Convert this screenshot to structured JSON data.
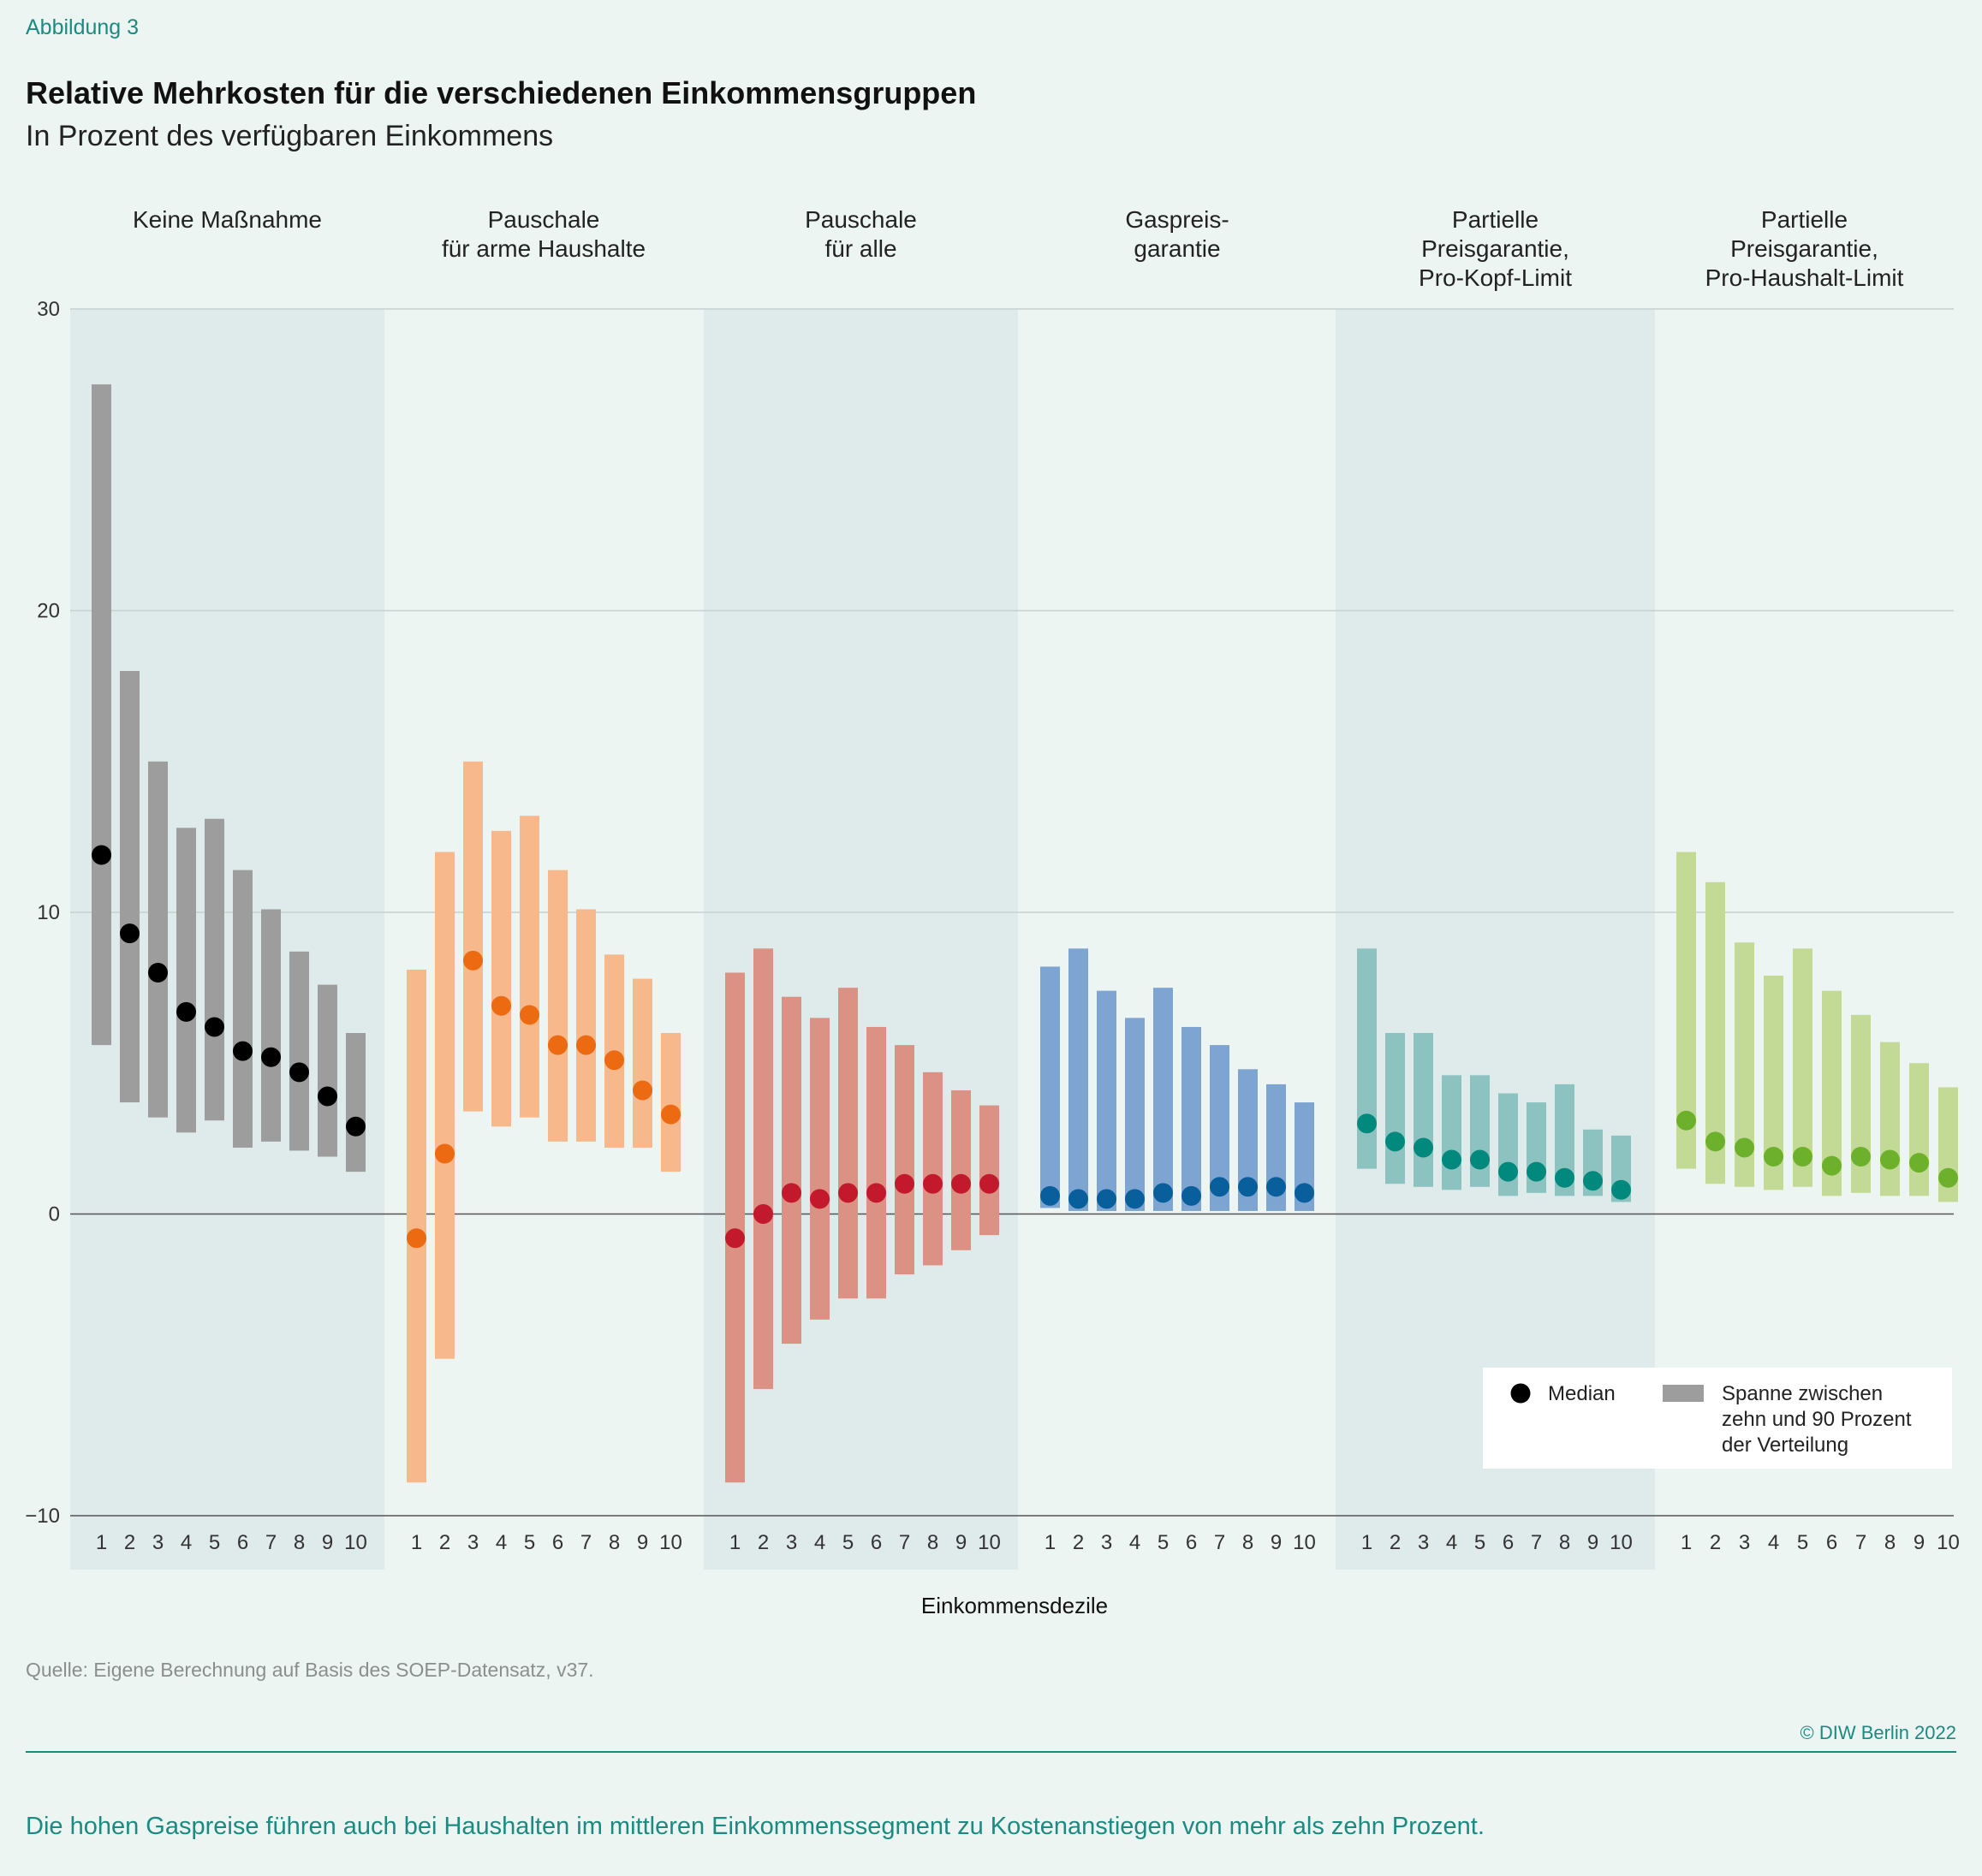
{
  "figure_label": "Abbildung 3",
  "title": "Relative Mehrkosten für die verschiedenen Einkommensgruppen",
  "subtitle": "In Prozent des verfügbaren Einkommens",
  "source": "Quelle: Eigene Berechnung auf Basis des SOEP-Datensatz, v37.",
  "copyright": "© DIW Berlin 2022",
  "caption": "Die hohen Gaspreise führen auch bei Haushalten im mittleren Einkommenssegment zu Kostenanstiegen von mehr als zehn Prozent.",
  "chart_data": {
    "type": "range-dot",
    "xlabel": "Einkommensdezile",
    "ylabel": "In Prozent des verfügbaren Einkommens",
    "ylim": [
      -10,
      30
    ],
    "yticks": [
      -10,
      0,
      10,
      20,
      30
    ],
    "ytick_labels": [
      "−10",
      "0",
      "10",
      "20",
      "30"
    ],
    "categories": [
      "1",
      "2",
      "3",
      "4",
      "5",
      "6",
      "7",
      "8",
      "9",
      "10"
    ],
    "legend": {
      "median_label": "Median",
      "range_label": [
        "Spanne zwischen",
        "zehn und 90 Prozent",
        "der Verteilung"
      ],
      "swatch_color": "#9d9d9d",
      "dot_color": "#000000"
    },
    "panels": [
      {
        "title": [
          "Keine Maßnahme"
        ],
        "bar_color": "#9d9d9d",
        "dot_color": "#000000",
        "low": [
          5.6,
          3.7,
          3.2,
          2.7,
          3.1,
          2.2,
          2.4,
          2.1,
          1.9,
          1.4
        ],
        "high": [
          27.5,
          18.0,
          15.0,
          12.8,
          13.1,
          11.4,
          10.1,
          8.7,
          7.6,
          6.0
        ],
        "median": [
          11.9,
          9.3,
          8.0,
          6.7,
          6.2,
          5.4,
          5.2,
          4.7,
          3.9,
          2.9
        ]
      },
      {
        "title": [
          "Pauschale",
          "für arme Haushalte"
        ],
        "bar_color": "#f7b98b",
        "dot_color": "#ec6a12",
        "low": [
          -8.9,
          -4.8,
          3.4,
          2.9,
          3.2,
          2.4,
          2.4,
          2.2,
          2.2,
          1.4
        ],
        "high": [
          8.1,
          12.0,
          15.0,
          12.7,
          13.2,
          11.4,
          10.1,
          8.6,
          7.8,
          6.0
        ],
        "median": [
          -0.8,
          2.0,
          8.4,
          6.9,
          6.6,
          5.6,
          5.6,
          5.1,
          4.1,
          3.3
        ]
      },
      {
        "title": [
          "Pauschale",
          "für alle"
        ],
        "bar_color": "#db9285",
        "dot_color": "#c2192d",
        "low": [
          -8.9,
          -5.8,
          -4.3,
          -3.5,
          -2.8,
          -2.8,
          -2.0,
          -1.7,
          -1.2,
          -0.7
        ],
        "high": [
          8.0,
          8.8,
          7.2,
          6.5,
          7.5,
          6.2,
          5.6,
          4.7,
          4.1,
          3.6
        ],
        "median": [
          -0.8,
          0.0,
          0.7,
          0.5,
          0.7,
          0.7,
          1.0,
          1.0,
          1.0,
          1.0
        ]
      },
      {
        "title": [
          "Gaspreis-",
          "garantie"
        ],
        "bar_color": "#7ea5d2",
        "dot_color": "#095f9c",
        "low": [
          0.2,
          0.1,
          0.1,
          0.1,
          0.1,
          0.1,
          0.1,
          0.1,
          0.1,
          0.1
        ],
        "high": [
          8.2,
          8.8,
          7.4,
          6.5,
          7.5,
          6.2,
          5.6,
          4.8,
          4.3,
          3.7
        ],
        "median": [
          0.6,
          0.5,
          0.5,
          0.5,
          0.7,
          0.6,
          0.9,
          0.9,
          0.9,
          0.7
        ]
      },
      {
        "title": [
          "Partielle",
          "Preisgarantie,",
          "Pro-Kopf-Limit"
        ],
        "bar_color": "#8cc2bf",
        "dot_color": "#00897c",
        "low": [
          1.5,
          1.0,
          0.9,
          0.8,
          0.9,
          0.6,
          0.7,
          0.6,
          0.6,
          0.4
        ],
        "high": [
          8.8,
          6.0,
          6.0,
          4.6,
          4.6,
          4.0,
          3.7,
          4.3,
          2.8,
          2.6
        ],
        "median": [
          3.0,
          2.4,
          2.2,
          1.8,
          1.8,
          1.4,
          1.4,
          1.2,
          1.1,
          0.8
        ]
      },
      {
        "title": [
          "Partielle",
          "Preisgarantie,",
          "Pro-Haushalt-Limit"
        ],
        "bar_color": "#c2da96",
        "dot_color": "#6cb02c",
        "low": [
          1.5,
          1.0,
          0.9,
          0.8,
          0.9,
          0.6,
          0.7,
          0.6,
          0.6,
          0.4
        ],
        "high": [
          12.0,
          11.0,
          9.0,
          7.9,
          8.8,
          7.4,
          6.6,
          5.7,
          5.0,
          4.2
        ],
        "median": [
          3.1,
          2.4,
          2.2,
          1.9,
          1.9,
          1.6,
          1.9,
          1.8,
          1.7,
          1.2
        ]
      }
    ]
  }
}
